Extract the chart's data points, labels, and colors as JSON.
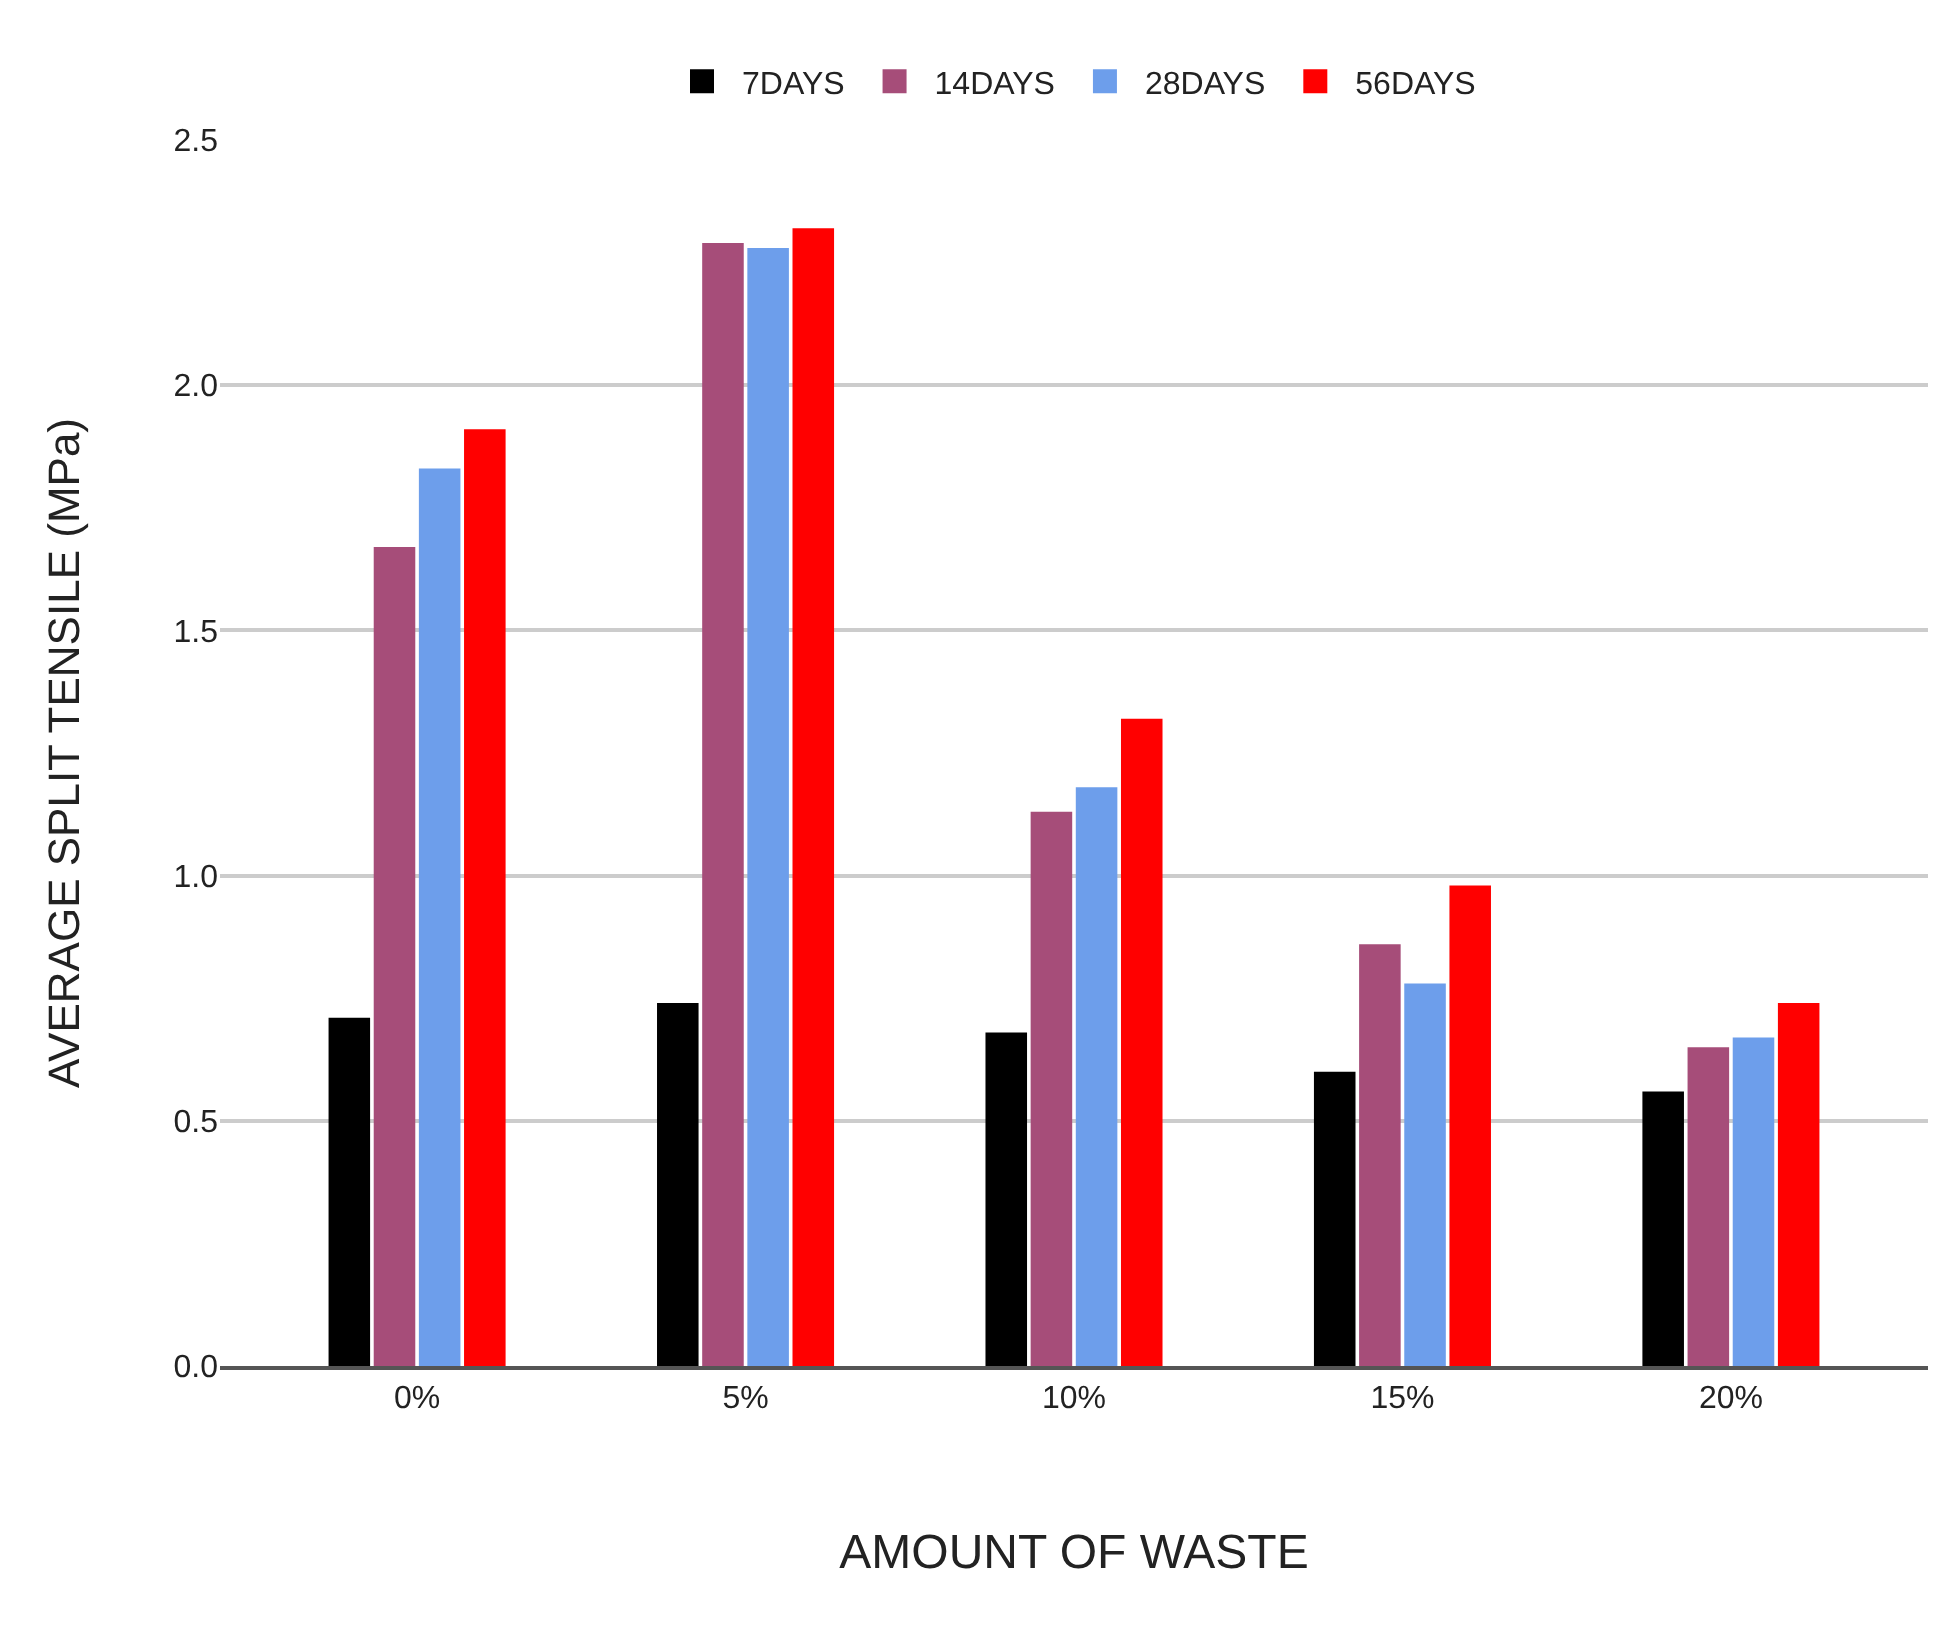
{
  "chart_data": {
    "type": "bar",
    "xlabel": "AMOUNT OF WASTE",
    "ylabel": "AVERAGE SPLIT TENSILE (MPa)",
    "categories": [
      "0%",
      "5%",
      "10%",
      "15%",
      "20%"
    ],
    "series": [
      {
        "name": "7DAYS",
        "color": "#000000",
        "values": [
          0.71,
          0.74,
          0.68,
          0.6,
          0.56
        ]
      },
      {
        "name": "14DAYS",
        "color": "#a64d79",
        "values": [
          1.67,
          2.29,
          1.13,
          0.86,
          0.65
        ]
      },
      {
        "name": "28DAYS",
        "color": "#6d9eeb",
        "values": [
          1.83,
          2.28,
          1.18,
          0.78,
          0.67
        ]
      },
      {
        "name": "56DAYS",
        "color": "#ff0000",
        "values": [
          1.91,
          2.32,
          1.32,
          0.98,
          0.74
        ]
      }
    ],
    "ylim": [
      0,
      2.5
    ],
    "yticks": [
      {
        "value": 0,
        "label": "0.0"
      },
      {
        "value": 0.5,
        "label": "0.5"
      },
      {
        "value": 1.0,
        "label": "1.0"
      },
      {
        "value": 1.5,
        "label": "1.5"
      },
      {
        "value": 2.0,
        "label": "2.0"
      },
      {
        "value": 2.5,
        "label": "2.5"
      }
    ],
    "grid": "y",
    "legend": "top"
  }
}
